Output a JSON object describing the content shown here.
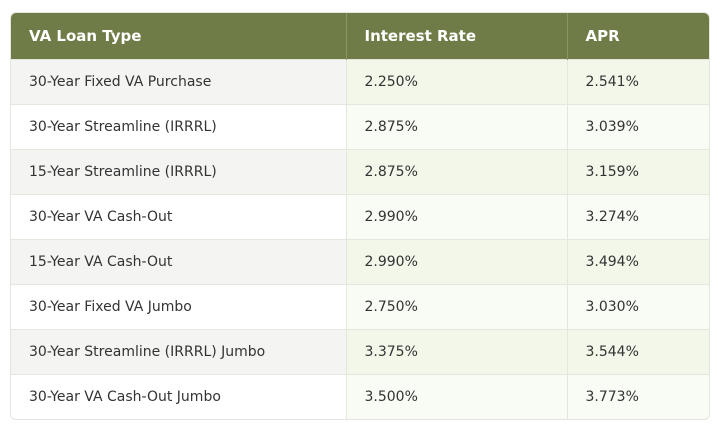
{
  "table": {
    "header": [
      "VA Loan Type",
      "Interest Rate",
      "APR"
    ],
    "rows": [
      [
        "30-Year Fixed VA Purchase",
        "2.250%",
        "2.541%"
      ],
      [
        "30-Year Streamline (IRRRL)",
        "2.875%",
        "3.039%"
      ],
      [
        "15-Year Streamline (IRRRL)",
        "2.875%",
        "3.159%"
      ],
      [
        "30-Year VA Cash-Out",
        "2.990%",
        "3.274%"
      ],
      [
        "15-Year VA Cash-Out",
        "2.990%",
        "3.494%"
      ],
      [
        "30-Year Fixed VA Jumbo",
        "2.750%",
        "3.030%"
      ],
      [
        "30-Year Streamline (IRRRL) Jumbo",
        "3.375%",
        "3.544%"
      ],
      [
        "30-Year VA Cash-Out Jumbo",
        "3.500%",
        "3.773%"
      ]
    ]
  }
}
